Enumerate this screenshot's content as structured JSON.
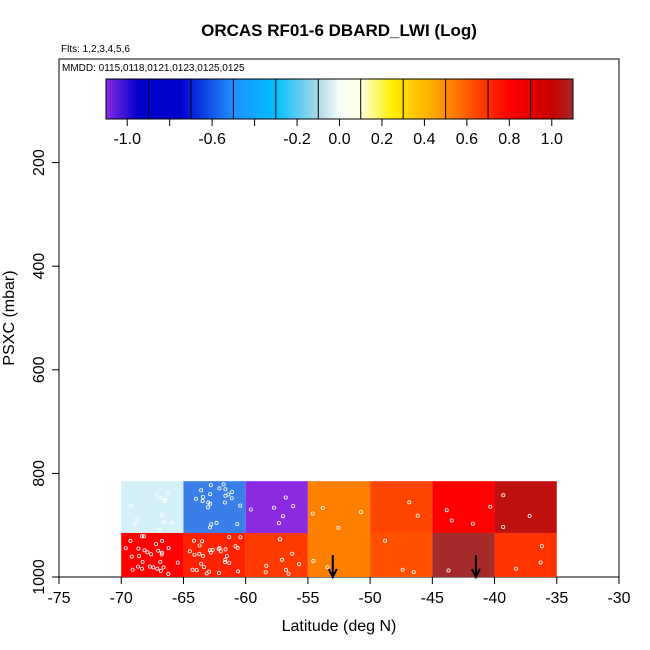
{
  "chart_data": {
    "type": "heatmap",
    "title": "ORCAS RF01-6 DBARD_LWI (Log)",
    "subtitle_flights": "Flts: 1,2,3,4,5,6",
    "subtitle_dates": "MMDD: 0115,0118,0121,0123,0125,0125",
    "xlabel": "Latitude (deg N)",
    "ylabel": "PSXC (mbar)",
    "xlim": [
      -75,
      -30
    ],
    "ylim": [
      1000,
      0
    ],
    "x_ticks": [
      -75,
      -70,
      -65,
      -60,
      -55,
      -50,
      -45,
      -40,
      -35,
      -30
    ],
    "y_ticks": [
      200,
      400,
      600,
      800,
      1000
    ],
    "colorbar": {
      "range": [
        -1.1,
        1.1
      ],
      "tick_values": [
        -1.0,
        -0.6,
        -0.2,
        0.0,
        0.2,
        0.4,
        0.6,
        0.8,
        1.0
      ],
      "tick_labels": [
        "-1.0",
        "-0.6",
        "-0.2",
        "0.0",
        "0.2",
        "0.4",
        "0.6",
        "0.8",
        "1.0"
      ],
      "stops": [
        {
          "v": -1.1,
          "c": "#8a2be2"
        },
        {
          "v": -0.95,
          "c": "#0000cd"
        },
        {
          "v": -0.75,
          "c": "#0000cd"
        },
        {
          "v": -0.5,
          "c": "#1e90ff"
        },
        {
          "v": -0.3,
          "c": "#00bfff"
        },
        {
          "v": -0.1,
          "c": "#add8e6"
        },
        {
          "v": 0.0,
          "c": "#f5fffa"
        },
        {
          "v": 0.1,
          "c": "#ffffe0"
        },
        {
          "v": 0.25,
          "c": "#ffef00"
        },
        {
          "v": 0.45,
          "c": "#ffa500"
        },
        {
          "v": 0.65,
          "c": "#ff4500"
        },
        {
          "v": 0.8,
          "c": "#ff0000"
        },
        {
          "v": 1.0,
          "c": "#c80000"
        },
        {
          "v": 1.1,
          "c": "#a52a2a"
        }
      ]
    },
    "cells": [
      {
        "lat0": -70,
        "lat1": -65,
        "p0": 815,
        "p1": 915,
        "color": "#d4f1fa",
        "points": 12
      },
      {
        "lat0": -65,
        "lat1": -60,
        "p0": 815,
        "p1": 915,
        "color": "#3a7fe8",
        "points": 22
      },
      {
        "lat0": -60,
        "lat1": -55,
        "p0": 815,
        "p1": 915,
        "color": "#8a2be2",
        "points": 6
      },
      {
        "lat0": -55,
        "lat1": -50,
        "p0": 815,
        "p1": 915,
        "color": "#ff7f00",
        "points": 4
      },
      {
        "lat0": -50,
        "lat1": -45,
        "p0": 815,
        "p1": 915,
        "color": "#ff4500",
        "points": 2
      },
      {
        "lat0": -45,
        "lat1": -40,
        "p0": 815,
        "p1": 915,
        "color": "#ff0000",
        "points": 4
      },
      {
        "lat0": -40,
        "lat1": -35,
        "p0": 815,
        "p1": 915,
        "color": "#c00f0f",
        "points": 3
      },
      {
        "lat0": -70,
        "lat1": -65,
        "p0": 915,
        "p1": 1000,
        "color": "#ff0000",
        "points": 28
      },
      {
        "lat0": -65,
        "lat1": -60,
        "p0": 915,
        "p1": 1000,
        "color": "#ff2200",
        "points": 30
      },
      {
        "lat0": -60,
        "lat1": -55,
        "p0": 915,
        "p1": 1000,
        "color": "#ff3a00",
        "points": 8
      },
      {
        "lat0": -55,
        "lat1": -50,
        "p0": 915,
        "p1": 1000,
        "color": "#ff7f00",
        "points": 2
      },
      {
        "lat0": -50,
        "lat1": -45,
        "p0": 915,
        "p1": 1000,
        "color": "#ff5000",
        "points": 3
      },
      {
        "lat0": -45,
        "lat1": -40,
        "p0": 915,
        "p1": 1000,
        "color": "#a52a2a",
        "points": 1
      },
      {
        "lat0": -40,
        "lat1": -35,
        "p0": 915,
        "p1": 1000,
        "color": "#ff3300",
        "points": 3
      }
    ],
    "arrows_lat": [
      -53,
      -41.5
    ],
    "grid": false
  }
}
